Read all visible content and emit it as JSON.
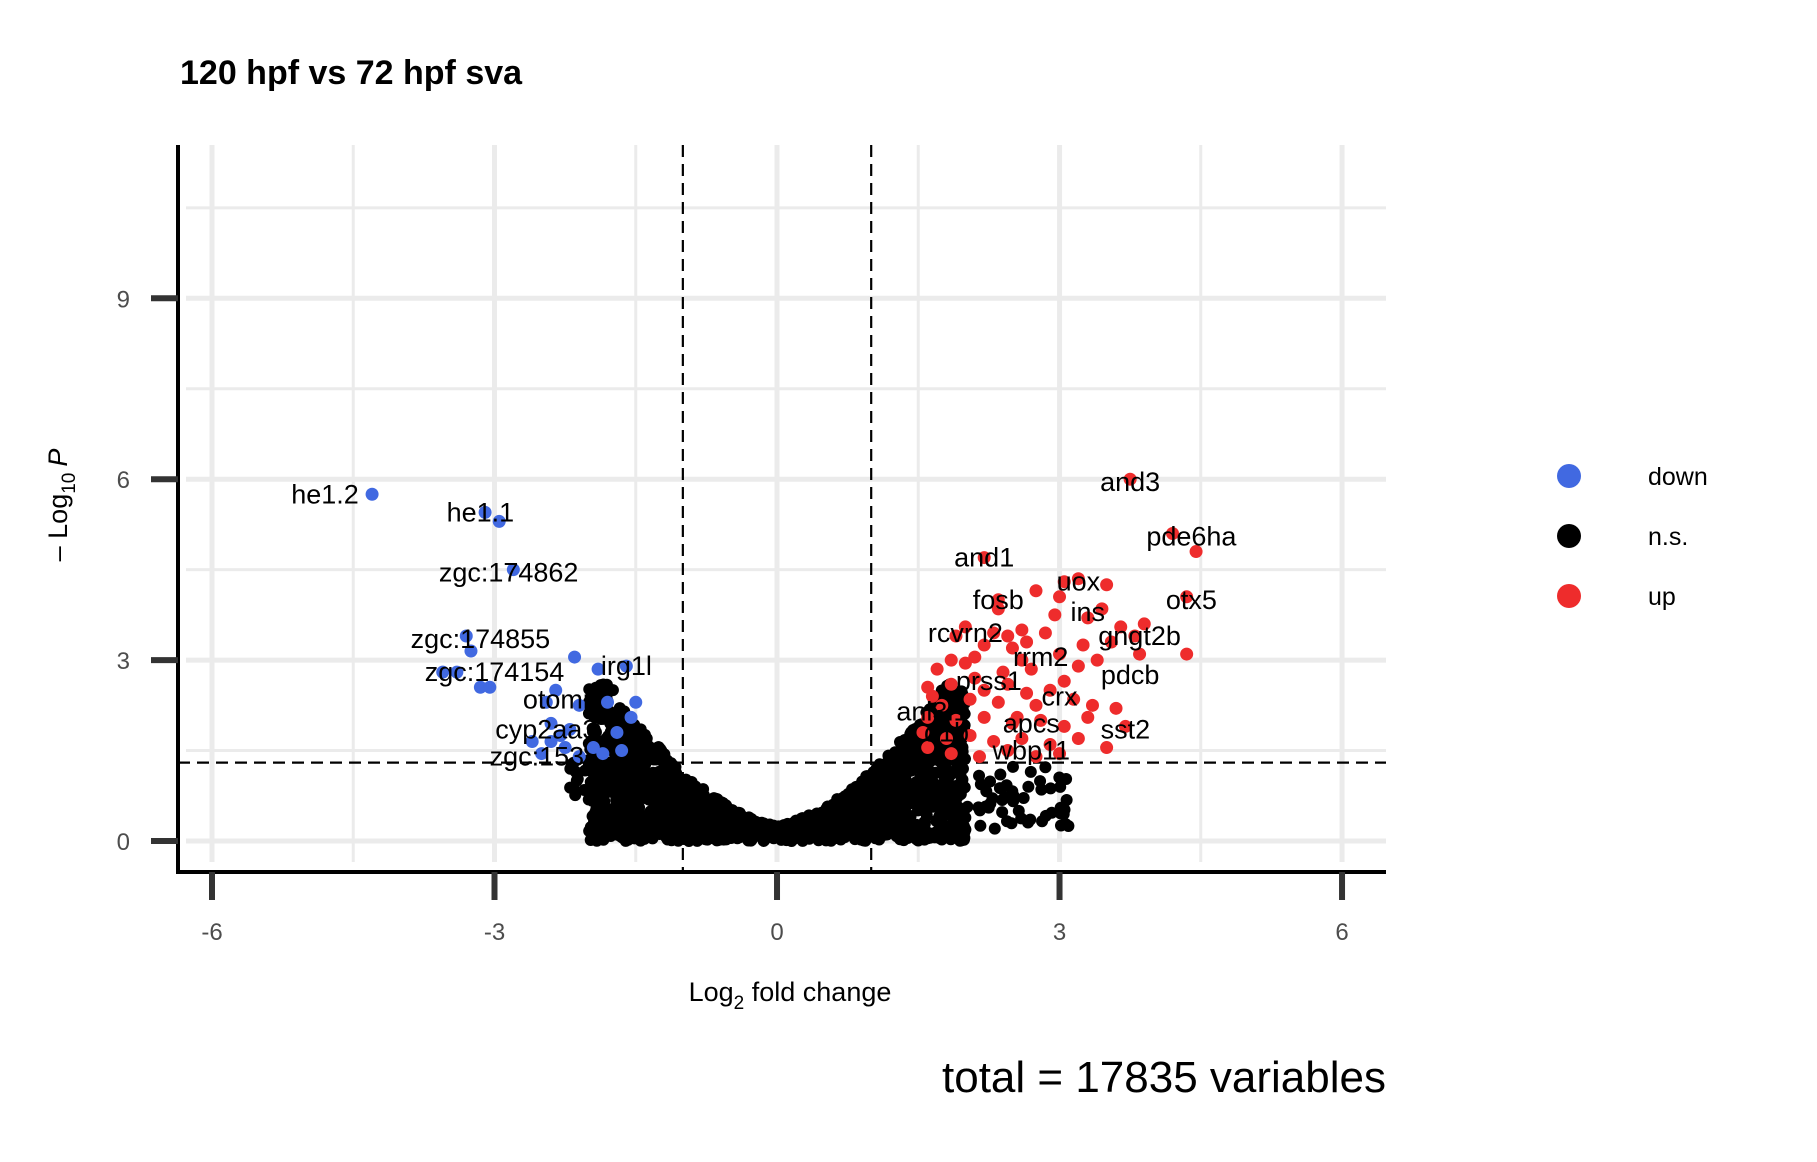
{
  "chart_data": {
    "type": "scatter",
    "title": "120 hpf vs 72 hpf sva",
    "xlabel": {
      "base": "Log",
      "sub": "2",
      "rest": " fold change"
    },
    "ylabel": {
      "prefix": "– Log",
      "sub": "10",
      "italic": "P"
    },
    "xlim": [
      -6.3,
      6.5
    ],
    "ylim": [
      -0.5,
      11.5
    ],
    "x_ticks": [
      -6,
      -3,
      0,
      3,
      6
    ],
    "y_ticks": [
      0,
      3,
      6,
      9
    ],
    "grid": true,
    "fc_cutoff": [
      -1,
      1
    ],
    "p_cutoff": 1.3,
    "legend_position": "right",
    "caption": "total = 17835 variables",
    "series": [
      {
        "name": "down",
        "color": "#4169E1",
        "points": [
          [
            -4.3,
            5.75
          ],
          [
            -3.1,
            5.45
          ],
          [
            -2.95,
            5.3
          ],
          [
            -2.8,
            4.5
          ],
          [
            -3.3,
            3.4
          ],
          [
            -3.25,
            3.15
          ],
          [
            -3.4,
            2.8
          ],
          [
            -3.55,
            2.8
          ],
          [
            -3.15,
            2.55
          ],
          [
            -3.05,
            2.55
          ],
          [
            -2.15,
            3.05
          ],
          [
            -1.9,
            2.85
          ],
          [
            -1.6,
            2.9
          ],
          [
            -1.5,
            2.3
          ],
          [
            -1.8,
            2.3
          ],
          [
            -2.1,
            2.25
          ],
          [
            -2.35,
            2.5
          ],
          [
            -2.45,
            2.3
          ],
          [
            -2.4,
            1.95
          ],
          [
            -2.2,
            1.85
          ],
          [
            -1.55,
            2.05
          ],
          [
            -1.7,
            1.8
          ],
          [
            -2.4,
            1.65
          ],
          [
            -2.5,
            1.45
          ],
          [
            -2.25,
            1.55
          ],
          [
            -2.1,
            1.4
          ],
          [
            -1.95,
            1.55
          ],
          [
            -1.85,
            1.45
          ],
          [
            -1.65,
            1.5
          ],
          [
            -2.6,
            1.65
          ],
          [
            -2.3,
            1.75
          ]
        ]
      },
      {
        "name": "n.s.",
        "color": "#000000",
        "points": []
      },
      {
        "name": "up",
        "color": "#EE2C2C",
        "points": [
          [
            3.75,
            6.0
          ],
          [
            4.2,
            5.1
          ],
          [
            4.45,
            4.8
          ],
          [
            2.2,
            4.7
          ],
          [
            3.2,
            4.35
          ],
          [
            3.05,
            4.3
          ],
          [
            3.5,
            4.25
          ],
          [
            4.35,
            4.05
          ],
          [
            2.75,
            4.15
          ],
          [
            2.35,
            4.0
          ],
          [
            3.0,
            4.05
          ],
          [
            2.35,
            3.85
          ],
          [
            3.45,
            3.85
          ],
          [
            3.3,
            3.7
          ],
          [
            2.95,
            3.75
          ],
          [
            3.65,
            3.55
          ],
          [
            3.9,
            3.6
          ],
          [
            3.8,
            3.4
          ],
          [
            2.6,
            3.5
          ],
          [
            2.85,
            3.45
          ],
          [
            2.0,
            3.55
          ],
          [
            2.3,
            3.45
          ],
          [
            3.85,
            3.1
          ],
          [
            4.35,
            3.1
          ],
          [
            3.4,
            3.0
          ],
          [
            3.0,
            3.1
          ],
          [
            2.5,
            3.2
          ],
          [
            2.2,
            3.25
          ],
          [
            1.9,
            3.4
          ],
          [
            1.85,
            3.0
          ],
          [
            2.7,
            2.85
          ],
          [
            2.4,
            2.8
          ],
          [
            2.1,
            2.7
          ],
          [
            1.85,
            2.6
          ],
          [
            1.6,
            2.55
          ],
          [
            1.65,
            2.4
          ],
          [
            1.75,
            2.25
          ],
          [
            2.05,
            2.35
          ],
          [
            2.35,
            2.3
          ],
          [
            2.65,
            2.45
          ],
          [
            2.9,
            2.5
          ],
          [
            3.15,
            2.35
          ],
          [
            3.35,
            2.25
          ],
          [
            3.6,
            2.2
          ],
          [
            1.6,
            2.05
          ],
          [
            1.9,
            2.0
          ],
          [
            2.2,
            2.05
          ],
          [
            2.5,
            1.95
          ],
          [
            2.8,
            2.0
          ],
          [
            3.05,
            1.9
          ],
          [
            3.7,
            1.9
          ],
          [
            1.55,
            1.8
          ],
          [
            1.8,
            1.7
          ],
          [
            2.05,
            1.75
          ],
          [
            2.3,
            1.65
          ],
          [
            2.6,
            1.7
          ],
          [
            2.9,
            1.6
          ],
          [
            3.2,
            1.7
          ],
          [
            3.5,
            1.55
          ],
          [
            1.6,
            1.55
          ],
          [
            1.85,
            1.45
          ],
          [
            2.15,
            1.4
          ],
          [
            2.45,
            1.5
          ],
          [
            2.75,
            1.4
          ],
          [
            3.0,
            1.45
          ],
          [
            2.1,
            3.05
          ],
          [
            2.6,
            3.0
          ],
          [
            3.2,
            2.9
          ],
          [
            2.45,
            2.6
          ],
          [
            2.2,
            2.5
          ],
          [
            3.05,
            2.65
          ],
          [
            2.75,
            2.25
          ],
          [
            1.7,
            2.85
          ],
          [
            2.45,
            3.4
          ],
          [
            2.65,
            3.3
          ],
          [
            3.55,
            3.3
          ],
          [
            3.25,
            3.25
          ],
          [
            2.55,
            2.05
          ],
          [
            3.3,
            2.05
          ],
          [
            2.0,
            2.95
          ]
        ]
      }
    ],
    "labels": [
      {
        "text": "he1.2",
        "x": -4.8,
        "y": 5.75
      },
      {
        "text": "he1.1",
        "x": -3.15,
        "y": 5.45
      },
      {
        "text": "zgc:174862",
        "x": -2.85,
        "y": 4.45
      },
      {
        "text": "zgc:174855",
        "x": -3.15,
        "y": 3.35
      },
      {
        "text": "zgc:174154",
        "x": -3.0,
        "y": 2.8
      },
      {
        "text": "irg1l",
        "x": -1.6,
        "y": 2.9
      },
      {
        "text": "otomp",
        "x": -2.3,
        "y": 2.35
      },
      {
        "text": "cyp2aa3",
        "x": -2.45,
        "y": 1.85
      },
      {
        "text": "zgc:153",
        "x": -2.55,
        "y": 1.4
      },
      {
        "text": "and3",
        "x": 3.75,
        "y": 5.95
      },
      {
        "text": "pde6ha",
        "x": 4.4,
        "y": 5.05
      },
      {
        "text": "and1",
        "x": 2.2,
        "y": 4.7
      },
      {
        "text": "uox",
        "x": 3.2,
        "y": 4.3
      },
      {
        "text": "fosb",
        "x": 2.35,
        "y": 4.0
      },
      {
        "text": "otx5",
        "x": 4.4,
        "y": 4.0
      },
      {
        "text": "ins",
        "x": 3.3,
        "y": 3.8
      },
      {
        "text": "rcvrn2",
        "x": 2.0,
        "y": 3.45
      },
      {
        "text": "gngt2b",
        "x": 3.85,
        "y": 3.4
      },
      {
        "text": "rrm2",
        "x": 2.8,
        "y": 3.05
      },
      {
        "text": "pdcb",
        "x": 3.75,
        "y": 2.75
      },
      {
        "text": "prss1",
        "x": 2.25,
        "y": 2.65
      },
      {
        "text": "crx",
        "x": 3.0,
        "y": 2.4
      },
      {
        "text": "anl3l1",
        "x": 1.65,
        "y": 2.15
      },
      {
        "text": "apcs",
        "x": 2.7,
        "y": 1.95
      },
      {
        "text": "d1b",
        "x": 1.8,
        "y": 1.8
      },
      {
        "text": "sst2",
        "x": 3.7,
        "y": 1.85
      },
      {
        "text": "wbp11",
        "x": 2.7,
        "y": 1.5
      }
    ]
  }
}
